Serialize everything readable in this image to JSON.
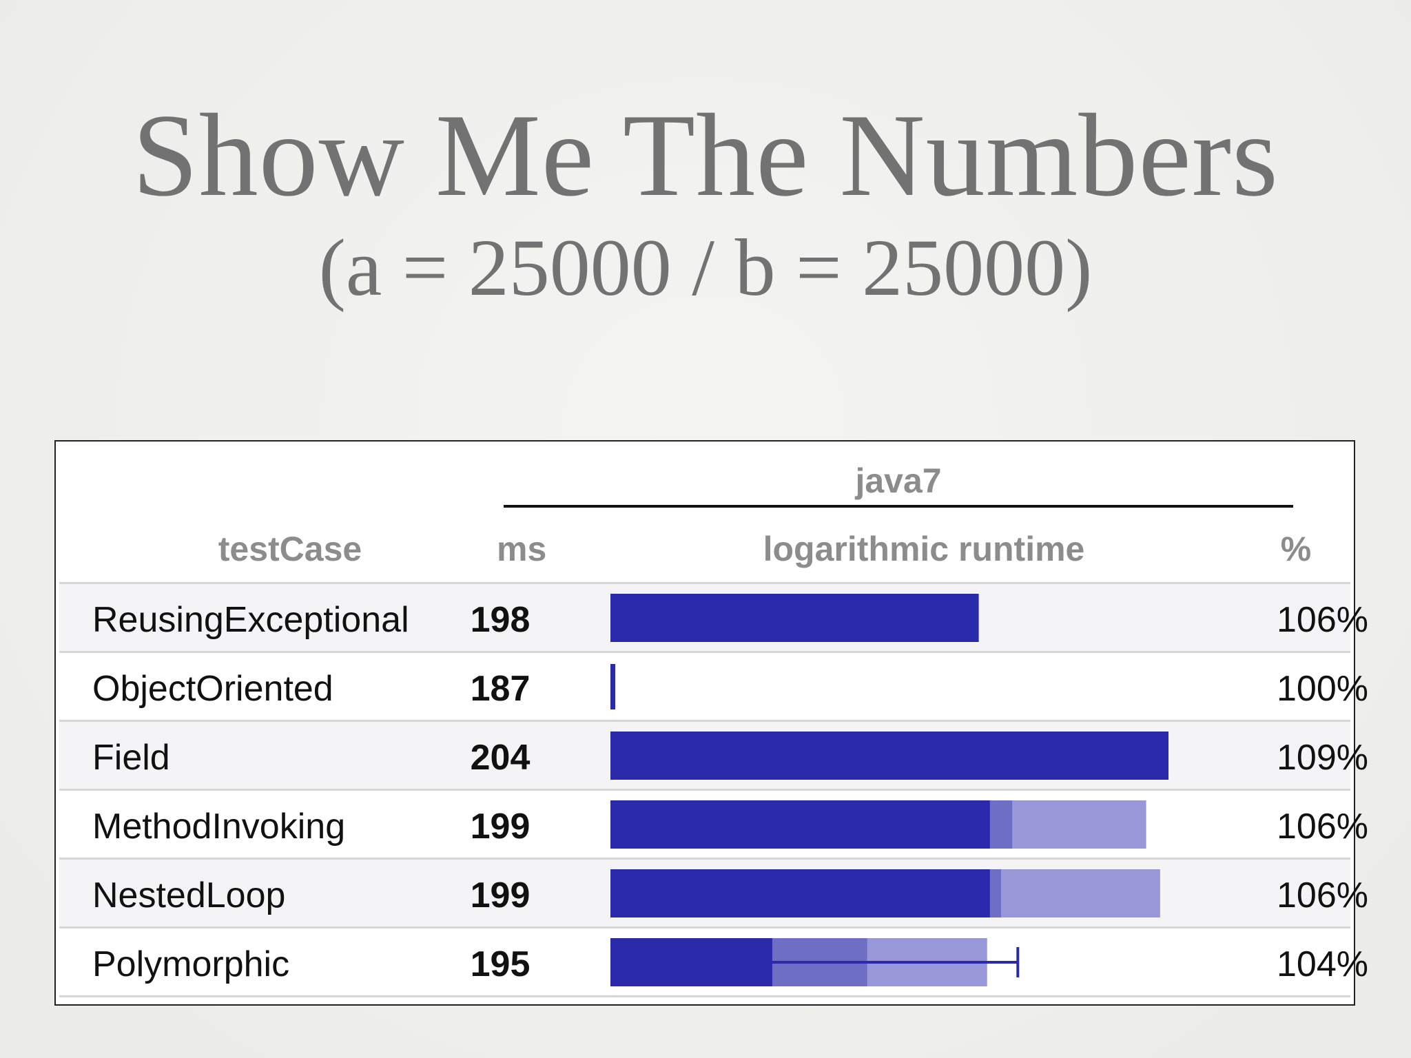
{
  "slide": {
    "title": "Show Me The Numbers",
    "subtitle": "(a = 25000 / b = 25000)"
  },
  "table": {
    "group_header": "java7",
    "columns": {
      "testcase": "testCase",
      "ms": "ms",
      "runtime": "logarithmic runtime",
      "pct": "%"
    }
  },
  "chart_data": {
    "type": "bar",
    "title": "",
    "group": "java7",
    "xlabel": "logarithmic runtime",
    "ylabel": "testCase",
    "scale": "log",
    "categories": [
      "ReusingExceptional",
      "ObjectOriented",
      "Field",
      "MethodInvoking",
      "NestedLoop",
      "Polymorphic"
    ],
    "ms": [
      198,
      187,
      204,
      199,
      199,
      195
    ],
    "percent": [
      "106%",
      "100%",
      "109%",
      "106%",
      "106%",
      "104%"
    ],
    "bar_fraction": [
      0.66,
      0.01,
      1.0,
      0.96,
      0.985,
      0.675
    ],
    "mid_fraction": [
      null,
      null,
      null,
      0.72,
      0.7,
      0.46
    ],
    "min_fraction": [
      null,
      null,
      null,
      0.68,
      0.68,
      0.29
    ],
    "whisker_low_fraction": [
      null,
      null,
      null,
      0.652,
      0.645,
      0.068
    ],
    "whisker_high_fraction": [
      null,
      null,
      null,
      0.652,
      0.645,
      0.73
    ],
    "colors": {
      "bar_dark": "#2a2aaa",
      "bar_mid": "#6e6ec4",
      "bar_light": "#9898d8",
      "whisker": "#2a2aaa"
    }
  }
}
